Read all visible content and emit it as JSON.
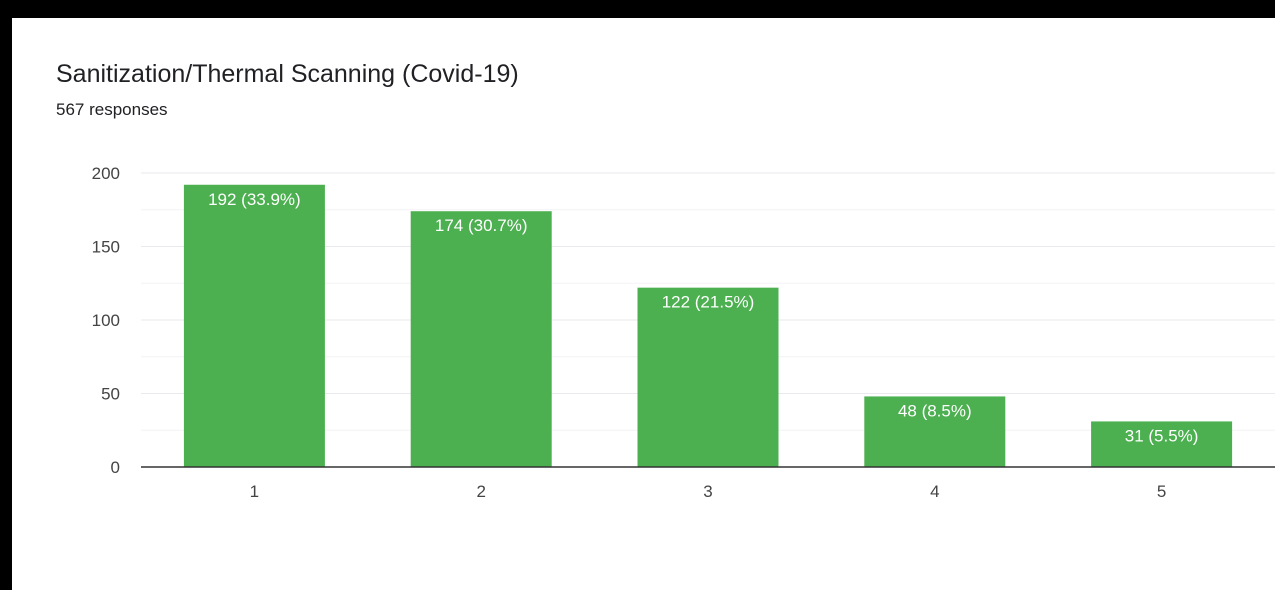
{
  "header": {
    "title": "Sanitization/Thermal Scanning (Covid-19)",
    "responses": "567 responses"
  },
  "colors": {
    "bar": "#4caf50",
    "grid_major": "#e8eaed",
    "grid_minor": "#f3f4f6",
    "axis": "#333333",
    "tick_text": "#444444",
    "bar_label": "#ffffff"
  },
  "chart_data": {
    "type": "bar",
    "title": "Sanitization/Thermal Scanning (Covid-19)",
    "subtitle": "567 responses",
    "categories": [
      "1",
      "2",
      "3",
      "4",
      "5"
    ],
    "values": [
      192,
      174,
      122,
      48,
      31
    ],
    "data_labels": [
      "192 (33.9%)",
      "174 (30.7%)",
      "122 (21.5%)",
      "48 (8.5%)",
      "31 (5.5%)"
    ],
    "ylim": [
      0,
      200
    ],
    "yticks": [
      0,
      50,
      100,
      150,
      200
    ],
    "grid": true,
    "legend": "none",
    "xlabel": "",
    "ylabel": ""
  }
}
